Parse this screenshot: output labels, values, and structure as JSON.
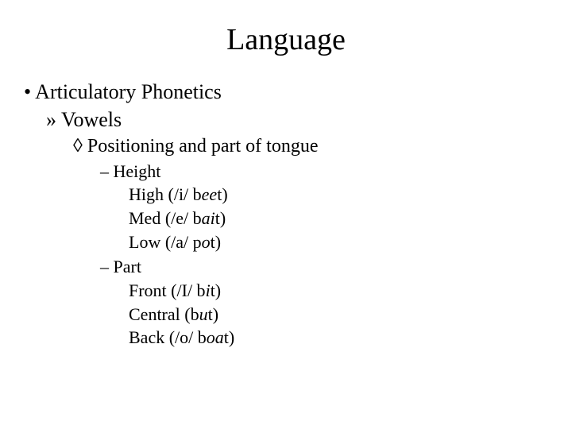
{
  "colors": {
    "background": "#ffffff",
    "text": "#000000"
  },
  "title": "Language",
  "l1_text": "Articulatory Phonetics",
  "l2_text": "Vowels",
  "l3_text": "Positioning and part of tongue",
  "height": {
    "label": "Height",
    "items": {
      "high": {
        "prefix": "High (/i/ b",
        "it": "ee",
        "suffix": "t)"
      },
      "med": {
        "prefix": "Med (/e/ b",
        "it": "ai",
        "suffix": "t)"
      },
      "low": {
        "prefix": "Low (/a/ p",
        "it": "o",
        "suffix": "t)"
      }
    }
  },
  "part": {
    "label": "Part",
    "items": {
      "front": {
        "prefix": "Front (/I/ b",
        "it": "i",
        "suffix": "t)"
      },
      "central": {
        "prefix": "Central (b",
        "it": "u",
        "suffix": "t)"
      },
      "back": {
        "prefix": "Back (/o/ b",
        "it": "oa",
        "suffix": "t)"
      }
    }
  },
  "typography": {
    "title_fontsize": 38,
    "l1_fontsize": 26,
    "l2_fontsize": 26,
    "l3_fontsize": 24,
    "l4_fontsize": 22,
    "l5_fontsize": 22,
    "font_family": "Times New Roman"
  }
}
